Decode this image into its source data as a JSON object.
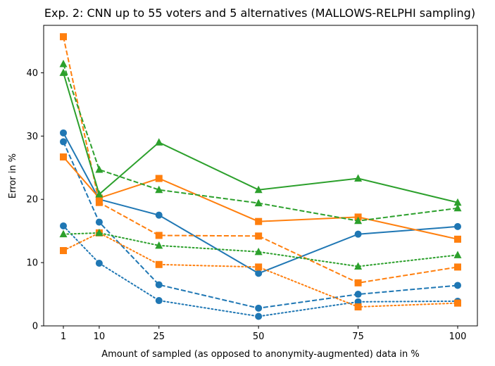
{
  "chart_data": {
    "type": "line",
    "title": "Exp. 2: CNN up to 55 voters and 5 alternatives (MALLOWS-RELPHI sampling)",
    "xlabel": "Amount of sampled (as opposed to anonymity-augmented) data in %",
    "ylabel": "Error in %",
    "x": [
      1,
      10,
      25,
      50,
      75,
      100
    ],
    "x_ticks": [
      "1",
      "10",
      "25",
      "50",
      "75",
      "100"
    ],
    "y_ticks": [
      "0",
      "10",
      "20",
      "30",
      "40"
    ],
    "xlim": [
      -3.95,
      104.95
    ],
    "ylim": [
      0,
      47.5
    ],
    "grid": false,
    "series": [
      {
        "name": "blue-solid",
        "color": "#1f77b4",
        "linestyle": "solid",
        "marker": "circle",
        "values": [
          30.5,
          20.0,
          17.5,
          8.3,
          14.5,
          15.7
        ]
      },
      {
        "name": "blue-dashed",
        "color": "#1f77b4",
        "linestyle": "dashed",
        "marker": "circle",
        "values": [
          29.1,
          16.4,
          6.5,
          2.8,
          5.0,
          6.4
        ]
      },
      {
        "name": "blue-dotted",
        "color": "#1f77b4",
        "linestyle": "dotted",
        "marker": "circle",
        "values": [
          15.8,
          9.9,
          4.0,
          1.5,
          3.8,
          3.9
        ]
      },
      {
        "name": "orange-solid",
        "color": "#ff7f0e",
        "linestyle": "solid",
        "marker": "square",
        "values": [
          26.7,
          20.2,
          23.3,
          16.5,
          17.2,
          13.7
        ]
      },
      {
        "name": "orange-dashed",
        "color": "#ff7f0e",
        "linestyle": "dashed",
        "marker": "square",
        "values": [
          45.7,
          19.5,
          14.3,
          14.2,
          6.8,
          9.3
        ]
      },
      {
        "name": "orange-dotted",
        "color": "#ff7f0e",
        "linestyle": "dotted",
        "marker": "square",
        "values": [
          11.9,
          14.7,
          9.7,
          9.3,
          3.0,
          3.6
        ]
      },
      {
        "name": "green-solid",
        "color": "#2ca02c",
        "linestyle": "solid",
        "marker": "triangle",
        "values": [
          40.0,
          20.8,
          29.0,
          21.5,
          23.3,
          19.5
        ]
      },
      {
        "name": "green-dashed",
        "color": "#2ca02c",
        "linestyle": "dashed",
        "marker": "triangle",
        "values": [
          41.4,
          24.7,
          21.5,
          19.4,
          16.6,
          18.6
        ]
      },
      {
        "name": "green-dotted",
        "color": "#2ca02c",
        "linestyle": "dotted",
        "marker": "triangle",
        "values": [
          14.5,
          14.7,
          12.7,
          11.7,
          9.4,
          11.2
        ]
      }
    ]
  }
}
